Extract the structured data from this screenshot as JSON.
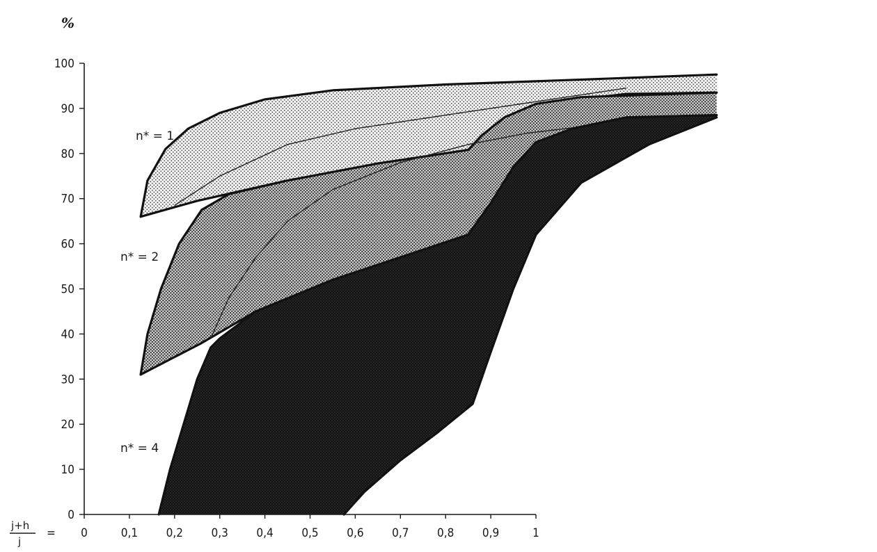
{
  "chart_data": {
    "type": "area",
    "y_unit_label": "%",
    "x_label_fraction": {
      "numerator": "j+h",
      "denominator": "j",
      "equals": "="
    },
    "x_ticks": [
      "0",
      "0,1",
      "0,2",
      "0,3",
      "0,4",
      "0,5",
      "0,6",
      "0,7",
      "0,8",
      "0,9",
      "1"
    ],
    "y_ticks": [
      "0",
      "10",
      "20",
      "30",
      "40",
      "50",
      "60",
      "70",
      "80",
      "90",
      "100"
    ],
    "xlim": [
      0,
      1.4
    ],
    "ylim": [
      0,
      100
    ],
    "grid": false,
    "series": [
      {
        "name": "n* = 1",
        "fill": "#d6d6d6",
        "upper": [
          [
            0.125,
            66
          ],
          [
            0.14,
            74
          ],
          [
            0.18,
            81
          ],
          [
            0.23,
            85.5
          ],
          [
            0.3,
            89
          ],
          [
            0.4,
            92
          ],
          [
            0.55,
            94
          ],
          [
            0.8,
            95.3
          ],
          [
            1.05,
            96.2
          ],
          [
            1.4,
            97.5
          ]
        ],
        "lower": [
          [
            0.125,
            66
          ],
          [
            0.25,
            69.5
          ],
          [
            0.45,
            74
          ],
          [
            0.65,
            77.5
          ],
          [
            0.85,
            80.7
          ],
          [
            0.88,
            84
          ],
          [
            0.95,
            88.5
          ],
          [
            1.05,
            91.5
          ],
          [
            1.2,
            93.2
          ],
          [
            1.4,
            93.5
          ]
        ],
        "inner": [
          [
            0.2,
            68.5
          ],
          [
            0.3,
            75
          ],
          [
            0.45,
            82
          ],
          [
            0.6,
            85.5
          ],
          [
            0.8,
            88.5
          ],
          [
            1.0,
            91.5
          ],
          [
            1.2,
            94.5
          ]
        ],
        "label": "n* = 1"
      },
      {
        "name": "n* = 2",
        "fill": "#a9a9a9",
        "upper": [
          [
            0.125,
            31
          ],
          [
            0.14,
            40
          ],
          [
            0.17,
            50
          ],
          [
            0.21,
            60
          ],
          [
            0.26,
            67.5
          ],
          [
            0.32,
            71
          ],
          [
            0.45,
            74
          ],
          [
            0.65,
            77.8
          ],
          [
            0.85,
            80.8
          ],
          [
            0.88,
            84
          ],
          [
            0.93,
            88
          ],
          [
            1.0,
            91
          ],
          [
            1.1,
            92.5
          ],
          [
            1.25,
            93
          ],
          [
            1.4,
            93.5
          ]
        ],
        "lower": [
          [
            0.125,
            31
          ],
          [
            0.26,
            38
          ],
          [
            0.38,
            45
          ],
          [
            0.55,
            52
          ],
          [
            0.7,
            57
          ],
          [
            0.85,
            62
          ],
          [
            0.9,
            69
          ],
          [
            0.95,
            77
          ],
          [
            1.0,
            82.5
          ],
          [
            1.08,
            85.5
          ],
          [
            1.2,
            88
          ],
          [
            1.4,
            88.5
          ]
        ],
        "inner": [
          [
            0.28,
            39
          ],
          [
            0.32,
            48
          ],
          [
            0.38,
            57
          ],
          [
            0.45,
            65
          ],
          [
            0.55,
            72
          ],
          [
            0.7,
            78
          ],
          [
            0.85,
            82
          ],
          [
            0.98,
            84.5
          ],
          [
            1.15,
            86.5
          ]
        ],
        "label": "n* = 2"
      },
      {
        "name": "n* = 4",
        "fill": "#151515",
        "upper": [
          [
            0.165,
            0
          ],
          [
            0.19,
            10
          ],
          [
            0.22,
            20
          ],
          [
            0.25,
            30
          ],
          [
            0.28,
            37
          ],
          [
            0.3,
            39
          ],
          [
            0.38,
            45
          ],
          [
            0.55,
            52
          ],
          [
            0.7,
            57
          ],
          [
            0.85,
            62
          ],
          [
            0.9,
            69
          ],
          [
            0.95,
            77
          ],
          [
            1.0,
            82.5
          ],
          [
            1.08,
            85.5
          ],
          [
            1.2,
            88
          ],
          [
            1.4,
            88.5
          ]
        ],
        "lower": [
          [
            0.575,
            0
          ],
          [
            0.62,
            5
          ],
          [
            0.7,
            12
          ],
          [
            0.78,
            18
          ],
          [
            0.86,
            24.5
          ],
          [
            0.9,
            36
          ],
          [
            0.95,
            50
          ],
          [
            1.0,
            62
          ],
          [
            1.1,
            73.5
          ],
          [
            1.25,
            82
          ],
          [
            1.4,
            88
          ]
        ],
        "label": "n* = 4"
      }
    ]
  }
}
